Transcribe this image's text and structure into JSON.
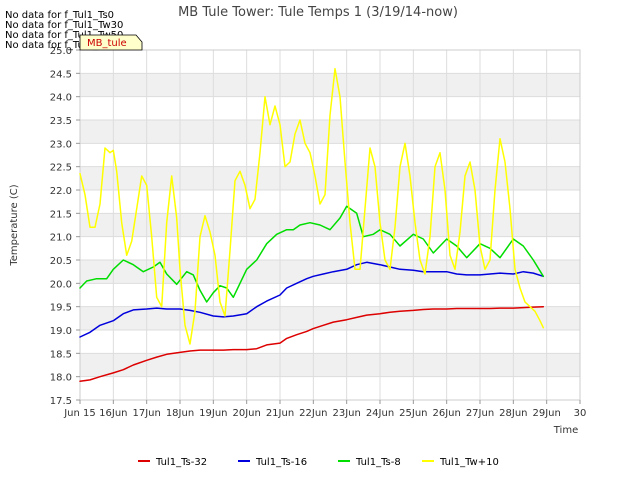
{
  "chart_data": {
    "type": "line",
    "title": "MB Tule Tower: Tule Temps 1 (3/19/14-now)",
    "xlabel": "Time",
    "ylabel": "Temperature (C)",
    "xlim": [
      15,
      30
    ],
    "ylim": [
      17.5,
      25.0
    ],
    "x_ticks": [
      15,
      16,
      17,
      18,
      19,
      20,
      21,
      22,
      23,
      24,
      25,
      26,
      27,
      28,
      29,
      30
    ],
    "x_tick_labels": [
      "Jun 15",
      "16Jun",
      "17Jun",
      "18Jun",
      "19Jun",
      "20Jun",
      "21Jun",
      "22Jun",
      "23Jun",
      "24Jun",
      "25Jun",
      "26Jun",
      "27Jun",
      "28Jun",
      "29Jun",
      "30"
    ],
    "y_ticks": [
      17.5,
      18.0,
      18.5,
      19.0,
      19.5,
      20.0,
      20.5,
      21.0,
      21.5,
      22.0,
      22.5,
      23.0,
      23.5,
      24.0,
      24.5,
      25.0
    ],
    "y_tick_labels": [
      "17.5",
      "18.0",
      "18.5",
      "19.0",
      "19.5",
      "20.0",
      "20.5",
      "21.0",
      "21.5",
      "22.0",
      "22.5",
      "23.0",
      "23.5",
      "24.0",
      "24.5",
      "25.0"
    ],
    "grid": true,
    "legend_position": "bottom",
    "no_data_messages": [
      "No data for f_Tul1_Ts0",
      "No data for f_Tul1_Tw30",
      "No data for f_Tul1_Tw50",
      "No data for f_Tul1_Tw60"
    ],
    "tooltip_label": "MB_tule",
    "series": [
      {
        "name": "Tul1_Ts-32",
        "color": "#dd0000",
        "x": [
          15.0,
          15.3,
          15.6,
          16.0,
          16.3,
          16.6,
          17.0,
          17.3,
          17.6,
          18.0,
          18.3,
          18.6,
          19.0,
          19.3,
          19.6,
          20.0,
          20.3,
          20.6,
          21.0,
          21.2,
          21.5,
          21.8,
          22.0,
          22.3,
          22.6,
          23.0,
          23.3,
          23.6,
          24.0,
          24.3,
          24.6,
          25.0,
          25.3,
          25.6,
          26.0,
          26.3,
          26.6,
          27.0,
          27.3,
          27.6,
          28.0,
          28.3,
          28.6,
          28.9
        ],
        "values": [
          17.9,
          17.93,
          18.0,
          18.08,
          18.15,
          18.25,
          18.35,
          18.42,
          18.48,
          18.52,
          18.55,
          18.57,
          18.57,
          18.57,
          18.58,
          18.58,
          18.6,
          18.68,
          18.72,
          18.82,
          18.9,
          18.97,
          19.03,
          19.1,
          19.17,
          19.22,
          19.27,
          19.32,
          19.35,
          19.38,
          19.4,
          19.42,
          19.44,
          19.45,
          19.45,
          19.46,
          19.46,
          19.46,
          19.46,
          19.47,
          19.47,
          19.48,
          19.49,
          19.5
        ]
      },
      {
        "name": "Tul1_Ts-16",
        "color": "#0000dd",
        "x": [
          15.0,
          15.3,
          15.6,
          16.0,
          16.3,
          16.6,
          17.0,
          17.3,
          17.6,
          18.0,
          18.3,
          18.6,
          19.0,
          19.3,
          19.6,
          20.0,
          20.3,
          20.6,
          21.0,
          21.2,
          21.5,
          21.8,
          22.0,
          22.3,
          22.6,
          23.0,
          23.3,
          23.6,
          24.0,
          24.3,
          24.6,
          25.0,
          25.3,
          25.6,
          26.0,
          26.3,
          26.6,
          27.0,
          27.3,
          27.6,
          28.0,
          28.3,
          28.6,
          28.9
        ],
        "values": [
          18.85,
          18.95,
          19.1,
          19.2,
          19.35,
          19.43,
          19.45,
          19.47,
          19.45,
          19.45,
          19.42,
          19.38,
          19.3,
          19.28,
          19.3,
          19.35,
          19.5,
          19.62,
          19.75,
          19.9,
          20.0,
          20.1,
          20.15,
          20.2,
          20.25,
          20.3,
          20.4,
          20.45,
          20.4,
          20.35,
          20.3,
          20.28,
          20.25,
          20.25,
          20.25,
          20.2,
          20.18,
          20.18,
          20.2,
          20.22,
          20.2,
          20.25,
          20.22,
          20.15
        ]
      },
      {
        "name": "Tul1_Ts-8",
        "color": "#00dd00",
        "x": [
          15.0,
          15.2,
          15.5,
          15.8,
          16.0,
          16.3,
          16.6,
          16.9,
          17.2,
          17.4,
          17.6,
          17.9,
          18.2,
          18.4,
          18.6,
          18.8,
          19.0,
          19.2,
          19.4,
          19.6,
          19.8,
          20.0,
          20.3,
          20.6,
          20.9,
          21.2,
          21.4,
          21.6,
          21.9,
          22.2,
          22.5,
          22.8,
          23.0,
          23.3,
          23.5,
          23.8,
          24.0,
          24.3,
          24.6,
          25.0,
          25.3,
          25.6,
          26.0,
          26.3,
          26.6,
          27.0,
          27.3,
          27.6,
          28.0,
          28.3,
          28.6,
          28.9
        ],
        "values": [
          19.9,
          20.05,
          20.1,
          20.1,
          20.3,
          20.5,
          20.4,
          20.25,
          20.35,
          20.45,
          20.2,
          19.98,
          20.25,
          20.18,
          19.85,
          19.6,
          19.8,
          19.95,
          19.9,
          19.7,
          20.0,
          20.3,
          20.5,
          20.85,
          21.05,
          21.15,
          21.15,
          21.25,
          21.3,
          21.25,
          21.15,
          21.4,
          21.65,
          21.5,
          21.0,
          21.05,
          21.15,
          21.05,
          20.8,
          21.05,
          20.95,
          20.65,
          20.95,
          20.8,
          20.55,
          20.85,
          20.75,
          20.55,
          20.95,
          20.8,
          20.5,
          20.15
        ]
      },
      {
        "name": "Tul1_Tw+10",
        "color": "#ffff00",
        "x": [
          15.0,
          15.15,
          15.3,
          15.45,
          15.6,
          15.75,
          15.9,
          16.0,
          16.1,
          16.25,
          16.4,
          16.55,
          16.7,
          16.85,
          17.0,
          17.15,
          17.3,
          17.45,
          17.6,
          17.75,
          17.9,
          18.0,
          18.15,
          18.3,
          18.45,
          18.6,
          18.75,
          18.9,
          19.05,
          19.2,
          19.35,
          19.5,
          19.65,
          19.8,
          19.95,
          20.1,
          20.25,
          20.4,
          20.55,
          20.7,
          20.85,
          21.0,
          21.15,
          21.3,
          21.45,
          21.6,
          21.75,
          21.9,
          22.05,
          22.2,
          22.35,
          22.5,
          22.65,
          22.8,
          22.95,
          23.1,
          23.25,
          23.4,
          23.55,
          23.7,
          23.85,
          24.0,
          24.15,
          24.3,
          24.45,
          24.6,
          24.75,
          24.9,
          25.05,
          25.2,
          25.35,
          25.5,
          25.65,
          25.8,
          25.95,
          26.1,
          26.25,
          26.4,
          26.55,
          26.7,
          26.85,
          27.0,
          27.15,
          27.3,
          27.45,
          27.6,
          27.75,
          27.9,
          28.05,
          28.2,
          28.35,
          28.5,
          28.65,
          28.8,
          28.9
        ],
        "values": [
          22.35,
          21.9,
          21.2,
          21.2,
          21.7,
          22.9,
          22.8,
          22.85,
          22.4,
          21.3,
          20.6,
          20.9,
          21.6,
          22.3,
          22.1,
          21.0,
          19.7,
          19.5,
          21.3,
          22.3,
          21.4,
          20.3,
          19.1,
          18.7,
          19.4,
          21.0,
          21.45,
          21.1,
          20.6,
          19.6,
          19.3,
          20.7,
          22.2,
          22.4,
          22.1,
          21.6,
          21.8,
          22.8,
          24.0,
          23.4,
          23.8,
          23.4,
          22.5,
          22.6,
          23.2,
          23.5,
          23.0,
          22.8,
          22.3,
          21.7,
          21.9,
          23.6,
          24.6,
          24.0,
          22.6,
          21.3,
          20.3,
          20.3,
          21.6,
          22.9,
          22.5,
          21.3,
          20.5,
          20.3,
          21.2,
          22.5,
          23.0,
          22.3,
          21.3,
          20.5,
          20.2,
          21.0,
          22.5,
          22.8,
          22.0,
          20.6,
          20.3,
          21.1,
          22.3,
          22.6,
          22.0,
          20.8,
          20.3,
          20.5,
          22.0,
          23.1,
          22.6,
          21.6,
          20.3,
          19.9,
          19.6,
          19.5,
          19.4,
          19.2,
          19.05
        ]
      }
    ]
  }
}
